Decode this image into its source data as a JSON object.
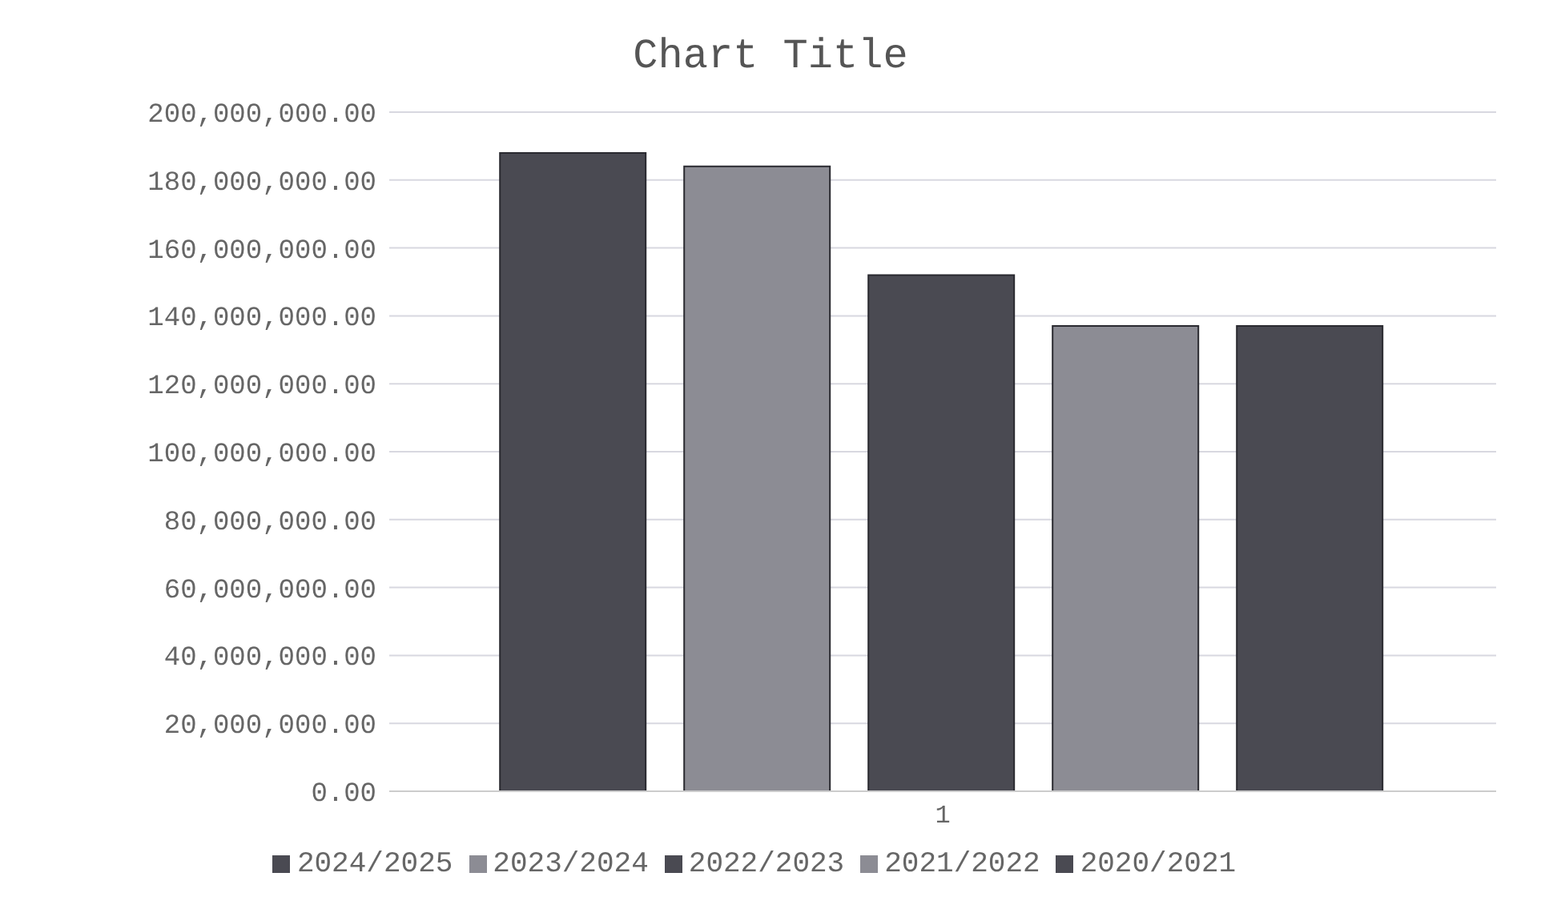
{
  "chart_data": {
    "type": "bar",
    "title": "Chart Title",
    "categories": [
      "1"
    ],
    "series": [
      {
        "name": "2024/2025",
        "color": "#4a4a52",
        "values": [
          188000000
        ]
      },
      {
        "name": "2023/2024",
        "color": "#8c8c94",
        "values": [
          184000000
        ]
      },
      {
        "name": "2022/2023",
        "color": "#4a4a52",
        "values": [
          152000000
        ]
      },
      {
        "name": "2021/2022",
        "color": "#8c8c94",
        "values": [
          137000000
        ]
      },
      {
        "name": "2020/2021",
        "color": "#4a4a52",
        "values": [
          137000000
        ]
      }
    ],
    "ylim": [
      0,
      200000000
    ],
    "yticks": [
      {
        "value": 0,
        "label": "0.00"
      },
      {
        "value": 20000000,
        "label": "20,000,000.00"
      },
      {
        "value": 40000000,
        "label": "40,000,000.00"
      },
      {
        "value": 60000000,
        "label": "60,000,000.00"
      },
      {
        "value": 80000000,
        "label": "80,000,000.00"
      },
      {
        "value": 100000000,
        "label": "100,000,000.00"
      },
      {
        "value": 120000000,
        "label": "120,000,000.00"
      },
      {
        "value": 140000000,
        "label": "140,000,000.00"
      },
      {
        "value": 160000000,
        "label": "160,000,000.00"
      },
      {
        "value": 180000000,
        "label": "180,000,000.00"
      },
      {
        "value": 200000000,
        "label": "200,000,000.00"
      }
    ],
    "grid": "y",
    "legend": "bottom"
  }
}
